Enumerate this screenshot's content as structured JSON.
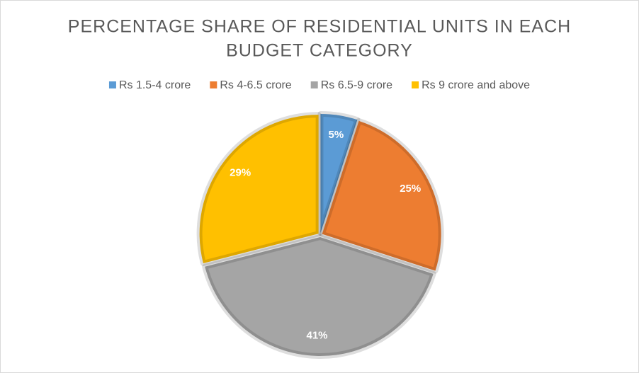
{
  "chart_data": {
    "type": "pie",
    "title": [
      "PERCENTAGE SHARE OF RESIDENTIAL UNITS IN EACH",
      "BUDGET CATEGORY"
    ],
    "categories": [
      "Rs 1.5-4 crore",
      "Rs 4-6.5 crore",
      "Rs 6.5-9 crore",
      "Rs 9 crore and above"
    ],
    "values": [
      5,
      25,
      41,
      29
    ],
    "value_labels": [
      "5%",
      "25%",
      "41%",
      "29%"
    ],
    "colors": [
      "#5b9bd5",
      "#ed7d31",
      "#a5a5a5",
      "#ffc000"
    ],
    "legend": "top"
  }
}
